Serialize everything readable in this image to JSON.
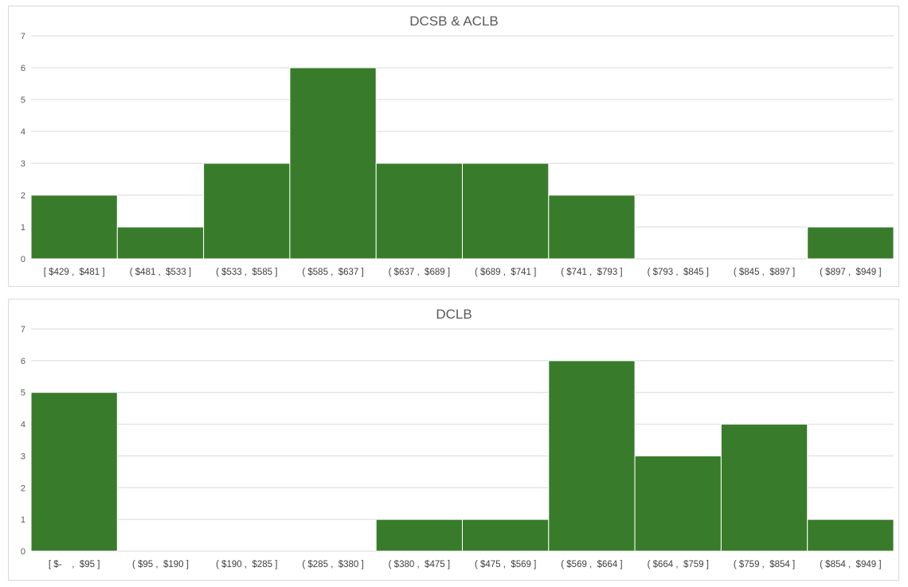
{
  "chart_data": [
    {
      "type": "bar",
      "title": "DCSB & ACLB",
      "categories": [
        "[ $429 ,  $481 ]",
        "( $481 ,  $533 ]",
        "( $533 ,  $585 ]",
        "( $585 ,  $637 ]",
        "( $637 ,  $689 ]",
        "( $689 ,  $741 ]",
        "( $741 ,  $793 ]",
        "( $793 ,  $845 ]",
        "( $845 ,  $897 ]",
        "( $897 ,  $949 ]"
      ],
      "values": [
        2,
        1,
        3,
        6,
        3,
        3,
        2,
        0,
        0,
        1
      ],
      "yticks": [
        "0",
        "1",
        "2",
        "3",
        "4",
        "5",
        "6",
        "7"
      ],
      "ylim": [
        0,
        7
      ],
      "xlabel": "",
      "ylabel": "",
      "grid": true,
      "bar_color": "#387c2b"
    },
    {
      "type": "bar",
      "title": "DCLB",
      "categories": [
        "[ $-    ,  $95 ]",
        "( $95 ,  $190 ]",
        "( $190 ,  $285 ]",
        "( $285 ,  $380 ]",
        "( $380 ,  $475 ]",
        "( $475 ,  $569 ]",
        "( $569 ,  $664 ]",
        "( $664 ,  $759 ]",
        "( $759 ,  $854 ]",
        "( $854 ,  $949 ]"
      ],
      "values": [
        5,
        0,
        0,
        0,
        1,
        1,
        6,
        3,
        4,
        1
      ],
      "yticks": [
        "0",
        "1",
        "2",
        "3",
        "4",
        "5",
        "6",
        "7"
      ],
      "ylim": [
        0,
        7
      ],
      "xlabel": "",
      "ylabel": "",
      "grid": true,
      "bar_color": "#387c2b"
    }
  ]
}
